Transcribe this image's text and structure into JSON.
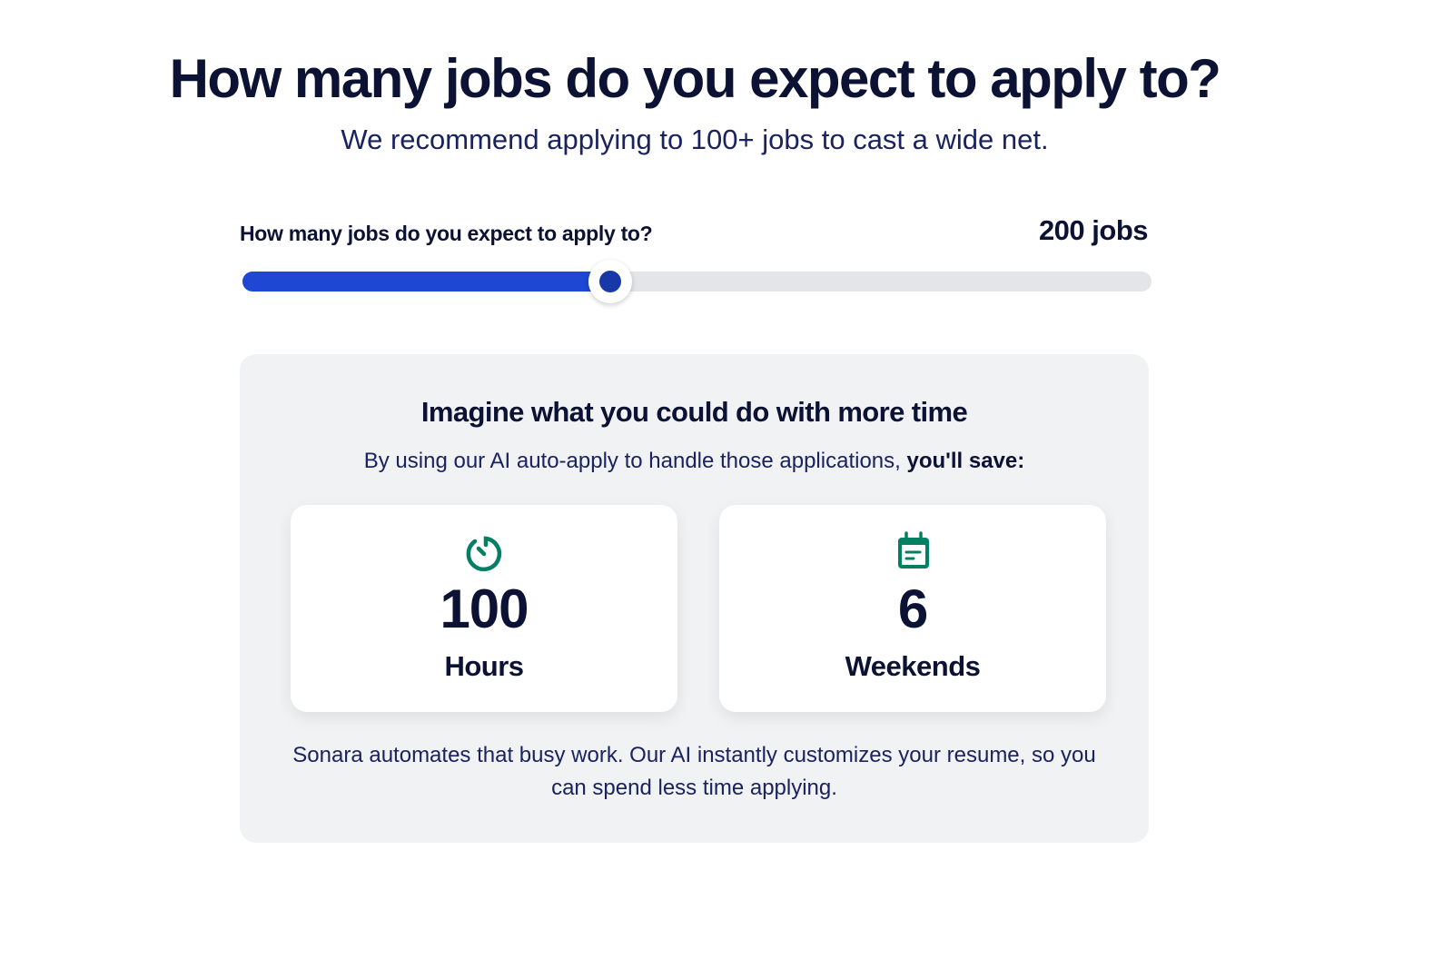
{
  "header": {
    "title": "How many jobs do you expect to apply to?",
    "subtitle": "We recommend applying to 100+ jobs to cast a wide net."
  },
  "slider": {
    "label": "How many jobs do you expect to apply to?",
    "value_text": "200 jobs",
    "fraction": 0.405,
    "fill_color": "#1e47d4",
    "track_color": "#e4e5e9"
  },
  "savings": {
    "title": "Imagine what you could do with more time",
    "subtitle_prefix": "By using our AI auto-apply to handle those applications, ",
    "subtitle_bold": "you'll save:",
    "accent_color": "#047f63",
    "cards": [
      {
        "icon": "timer-icon",
        "value": "100",
        "unit": "Hours"
      },
      {
        "icon": "calendar-icon",
        "value": "6",
        "unit": "Weekends"
      }
    ],
    "footer": "Sonara automates that busy work. Our AI instantly customizes your resume, so you can spend less time applying."
  }
}
